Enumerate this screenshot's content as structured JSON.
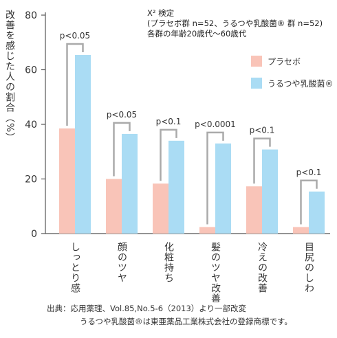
{
  "chart_data": {
    "type": "bar",
    "ylabel": "改善を感じた人の割合（%）",
    "ylim": [
      0,
      80
    ],
    "yticks": [
      0,
      20,
      40,
      60,
      80
    ],
    "categories": [
      "しっとり感",
      "顔のツヤ",
      "化粧持ち",
      "髪のツヤ改善",
      "冷えの改善",
      "目尻のしわ"
    ],
    "series": [
      {
        "name": "プラセボ",
        "color": "#f9c4b8",
        "values": [
          38.5,
          20,
          18.3,
          2.4,
          17.3,
          2.4
        ]
      },
      {
        "name": "うるつや乳酸菌®",
        "color": "#aadcf4",
        "values": [
          65.4,
          36.5,
          34,
          33,
          30.8,
          15.4
        ]
      }
    ],
    "annotations": [
      "p<0.05",
      "p<0.05",
      "p<0.1",
      "p<0.0001",
      "p<0.1",
      "p<0.1"
    ],
    "legend_position": "top-right",
    "grid": false
  },
  "note": {
    "line1": "X² 検定",
    "line2": "(プラセボ群 n=52、うるつや乳酸菌® 群 n=52)",
    "line3": "各群の年齢20歳代〜60歳代"
  },
  "footer": {
    "line1": "出典：応用薬理、Vol.85,No.5-6（2013）より一部改変",
    "line2": "うるつや乳酸菌®は東亜薬品工業株式会社の登録商標です。"
  },
  "colors": {
    "axis": "#555555",
    "bracket": "#aaaaaa"
  }
}
